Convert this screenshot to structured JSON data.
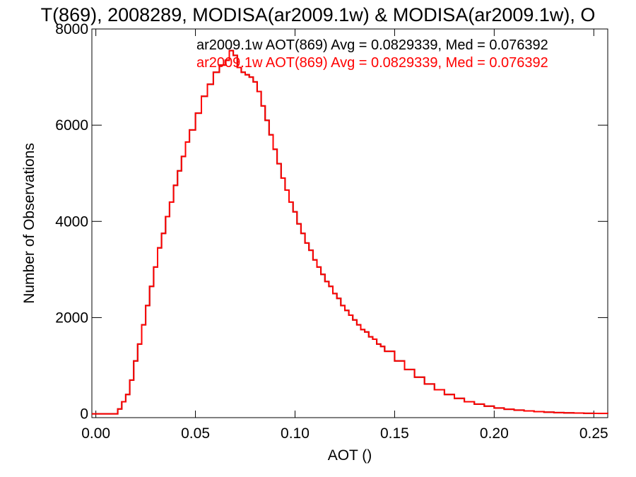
{
  "chart_data": {
    "type": "line",
    "title": "T(869), 2008289, MODISA(ar2009.1w) & MODISA(ar2009.1w), O",
    "xlabel": "AOT ()",
    "ylabel": "Number of Observations",
    "xlim": [
      -0.002,
      0.257
    ],
    "ylim": [
      -80,
      8000
    ],
    "xticks": [
      0.0,
      0.05,
      0.1,
      0.15,
      0.2,
      0.25
    ],
    "xtick_labels": [
      "0.00",
      "0.05",
      "0.10",
      "0.15",
      "0.20",
      "0.25"
    ],
    "yticks": [
      0,
      2000,
      4000,
      6000,
      8000
    ],
    "ytick_labels": [
      "0",
      "2000",
      "4000",
      "6000",
      "8000"
    ],
    "grid": false,
    "step": true,
    "legend_position": "top-right",
    "series": [
      {
        "name": "ar2009.1w AOT(869) Avg = 0.0829339, Med = 0.076392",
        "color": "#000000",
        "x": [
          -0.002,
          0.01,
          0.011,
          0.013,
          0.015,
          0.017,
          0.019,
          0.021,
          0.023,
          0.025,
          0.027,
          0.029,
          0.031,
          0.033,
          0.035,
          0.037,
          0.039,
          0.041,
          0.043,
          0.045,
          0.047,
          0.05,
          0.053,
          0.056,
          0.059,
          0.062,
          0.065,
          0.067,
          0.069,
          0.071,
          0.073,
          0.075,
          0.077,
          0.079,
          0.081,
          0.083,
          0.085,
          0.087,
          0.089,
          0.091,
          0.093,
          0.095,
          0.097,
          0.099,
          0.101,
          0.103,
          0.105,
          0.107,
          0.109,
          0.111,
          0.113,
          0.115,
          0.117,
          0.119,
          0.121,
          0.123,
          0.125,
          0.127,
          0.129,
          0.131,
          0.133,
          0.135,
          0.137,
          0.139,
          0.141,
          0.143,
          0.145,
          0.15,
          0.155,
          0.16,
          0.165,
          0.17,
          0.175,
          0.18,
          0.185,
          0.19,
          0.195,
          0.2,
          0.205,
          0.21,
          0.215,
          0.22,
          0.225,
          0.23,
          0.235,
          0.24,
          0.245,
          0.25,
          0.257
        ],
        "y": [
          0,
          0,
          100,
          250,
          400,
          700,
          1100,
          1450,
          1850,
          2250,
          2650,
          3050,
          3450,
          3750,
          4100,
          4400,
          4750,
          5050,
          5350,
          5650,
          5900,
          6250,
          6600,
          6850,
          7100,
          7250,
          7350,
          7550,
          7450,
          7200,
          7100,
          7050,
          7000,
          6900,
          6700,
          6400,
          6100,
          5800,
          5500,
          5200,
          4900,
          4650,
          4400,
          4200,
          3950,
          3750,
          3550,
          3400,
          3200,
          3050,
          2900,
          2750,
          2650,
          2500,
          2400,
          2250,
          2150,
          2050,
          1950,
          1850,
          1750,
          1700,
          1600,
          1550,
          1450,
          1400,
          1300,
          1100,
          920,
          760,
          620,
          500,
          400,
          320,
          250,
          200,
          160,
          120,
          95,
          75,
          60,
          45,
          35,
          25,
          20,
          15,
          10,
          8,
          5
        ]
      },
      {
        "name": "ar2009.1w AOT(869) Avg = 0.0829339, Med = 0.076392",
        "color": "#ff0000",
        "x": [
          -0.002,
          0.01,
          0.011,
          0.013,
          0.015,
          0.017,
          0.019,
          0.021,
          0.023,
          0.025,
          0.027,
          0.029,
          0.031,
          0.033,
          0.035,
          0.037,
          0.039,
          0.041,
          0.043,
          0.045,
          0.047,
          0.05,
          0.053,
          0.056,
          0.059,
          0.062,
          0.065,
          0.067,
          0.069,
          0.071,
          0.073,
          0.075,
          0.077,
          0.079,
          0.081,
          0.083,
          0.085,
          0.087,
          0.089,
          0.091,
          0.093,
          0.095,
          0.097,
          0.099,
          0.101,
          0.103,
          0.105,
          0.107,
          0.109,
          0.111,
          0.113,
          0.115,
          0.117,
          0.119,
          0.121,
          0.123,
          0.125,
          0.127,
          0.129,
          0.131,
          0.133,
          0.135,
          0.137,
          0.139,
          0.141,
          0.143,
          0.145,
          0.15,
          0.155,
          0.16,
          0.165,
          0.17,
          0.175,
          0.18,
          0.185,
          0.19,
          0.195,
          0.2,
          0.205,
          0.21,
          0.215,
          0.22,
          0.225,
          0.23,
          0.235,
          0.24,
          0.245,
          0.25,
          0.257
        ],
        "y": [
          0,
          0,
          100,
          250,
          400,
          700,
          1100,
          1450,
          1850,
          2250,
          2650,
          3050,
          3450,
          3750,
          4100,
          4400,
          4750,
          5050,
          5350,
          5650,
          5900,
          6250,
          6600,
          6850,
          7100,
          7250,
          7350,
          7550,
          7450,
          7200,
          7100,
          7050,
          7000,
          6900,
          6700,
          6400,
          6100,
          5800,
          5500,
          5200,
          4900,
          4650,
          4400,
          4200,
          3950,
          3750,
          3550,
          3400,
          3200,
          3050,
          2900,
          2750,
          2650,
          2500,
          2400,
          2250,
          2150,
          2050,
          1950,
          1850,
          1750,
          1700,
          1600,
          1550,
          1450,
          1400,
          1300,
          1100,
          920,
          760,
          620,
          500,
          400,
          320,
          250,
          200,
          160,
          120,
          95,
          75,
          60,
          45,
          35,
          25,
          20,
          15,
          10,
          8,
          5
        ]
      }
    ]
  }
}
